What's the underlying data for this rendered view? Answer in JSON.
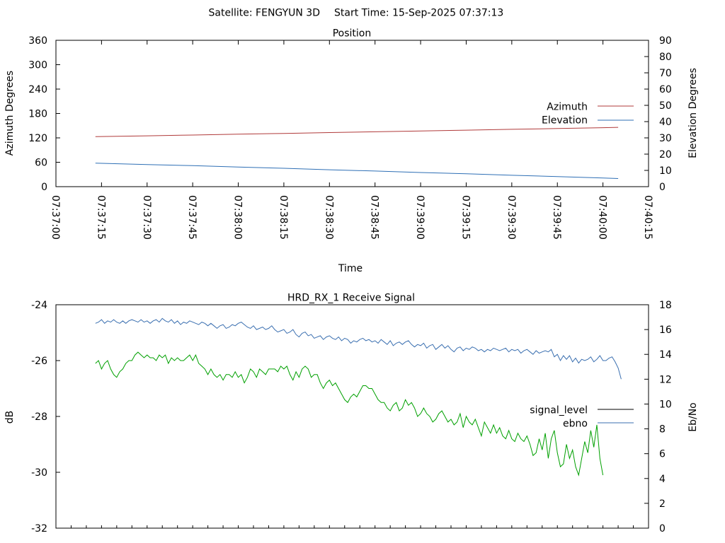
{
  "page": {
    "header_satellite": "Satellite: FENGYUN 3D",
    "header_start": "Start Time: 15-Sep-2025 07:37:13"
  },
  "colors": {
    "azimuth": "#b03a3a",
    "elevation": "#2e6fb5",
    "signal_level": "#000000",
    "ebno_line": "#3a6fb0",
    "signal_trace": "#00a000",
    "axis": "#000000"
  },
  "chart_data": [
    {
      "type": "line",
      "title": "Position",
      "xlabel": "Time",
      "ylabel": "Azimuth Degrees",
      "y2label": "Elevation Degrees",
      "x_ticks": [
        "07:37:00",
        "07:37:15",
        "07:37:30",
        "07:37:45",
        "07:38:00",
        "07:38:15",
        "07:38:30",
        "07:38:45",
        "07:39:00",
        "07:39:15",
        "07:39:30",
        "07:39:45",
        "07:40:00",
        "07:40:15"
      ],
      "xlim": [
        "07:37:00",
        "07:40:15"
      ],
      "ylim": [
        0,
        360
      ],
      "y_ticks": [
        0,
        60,
        120,
        180,
        240,
        300,
        360
      ],
      "y2lim": [
        0,
        90
      ],
      "y2_ticks": [
        0,
        10,
        20,
        30,
        40,
        50,
        60,
        70,
        80,
        90
      ],
      "legend_position": "right",
      "series": [
        {
          "name": "Azimuth",
          "axis": "y",
          "x": [
            "07:37:13",
            "07:37:30",
            "07:37:45",
            "07:38:00",
            "07:38:15",
            "07:38:30",
            "07:38:45",
            "07:39:00",
            "07:39:15",
            "07:39:30",
            "07:39:45",
            "07:40:00",
            "07:40:05"
          ],
          "values": [
            123,
            125,
            127,
            129,
            131,
            133,
            135,
            137,
            139,
            141,
            143,
            145,
            146
          ]
        },
        {
          "name": "Elevation",
          "axis": "y2",
          "x": [
            "07:37:13",
            "07:37:30",
            "07:37:45",
            "07:38:00",
            "07:38:15",
            "07:38:30",
            "07:38:45",
            "07:39:00",
            "07:39:15",
            "07:39:30",
            "07:39:45",
            "07:40:00",
            "07:40:05"
          ],
          "values": [
            14.5,
            13.6,
            12.9,
            12.1,
            11.3,
            10.4,
            9.6,
            8.7,
            7.9,
            7.0,
            6.2,
            5.3,
            5.0
          ]
        }
      ]
    },
    {
      "type": "line",
      "title": "HRD_RX_1 Receive Signal",
      "xlabel": "",
      "ylabel": "dB",
      "y2label": "Eb/No",
      "xlim": [
        "07:37:00",
        "07:40:15"
      ],
      "x_minor_ticks_seconds": 5,
      "ylim": [
        -32,
        -24
      ],
      "y_ticks": [
        -32,
        -30,
        -28,
        -26,
        -24
      ],
      "y2lim": [
        0,
        18
      ],
      "y2_ticks": [
        0,
        2,
        4,
        6,
        8,
        10,
        12,
        14,
        16,
        18
      ],
      "legend_position": "right",
      "legend": [
        {
          "name": "signal_level",
          "color_key": "signal_level"
        },
        {
          "name": "ebno",
          "color_key": "ebno_line"
        }
      ],
      "x_start": "07:37:13",
      "x_step_seconds": 1,
      "series": [
        {
          "axis": "y",
          "color_key": "signal_trace",
          "values": [
            -26.1,
            -26.0,
            -26.3,
            -26.1,
            -26.0,
            -26.3,
            -26.5,
            -26.6,
            -26.4,
            -26.3,
            -26.1,
            -26.0,
            -26.0,
            -25.8,
            -25.7,
            -25.8,
            -25.9,
            -25.8,
            -25.9,
            -25.9,
            -26.0,
            -25.8,
            -25.9,
            -25.8,
            -26.1,
            -25.9,
            -26.0,
            -25.9,
            -26.0,
            -26.0,
            -25.9,
            -25.8,
            -26.0,
            -25.8,
            -26.1,
            -26.2,
            -26.3,
            -26.5,
            -26.3,
            -26.5,
            -26.6,
            -26.5,
            -26.7,
            -26.5,
            -26.5,
            -26.6,
            -26.4,
            -26.6,
            -26.5,
            -26.8,
            -26.6,
            -26.3,
            -26.4,
            -26.6,
            -26.3,
            -26.4,
            -26.5,
            -26.3,
            -26.3,
            -26.3,
            -26.4,
            -26.2,
            -26.3,
            -26.2,
            -26.5,
            -26.7,
            -26.4,
            -26.6,
            -26.3,
            -26.2,
            -26.3,
            -26.6,
            -26.5,
            -26.5,
            -26.8,
            -27.0,
            -26.8,
            -26.7,
            -26.9,
            -26.8,
            -27.0,
            -27.2,
            -27.4,
            -27.5,
            -27.3,
            -27.2,
            -27.3,
            -27.1,
            -26.9,
            -26.9,
            -27.0,
            -27.0,
            -27.2,
            -27.4,
            -27.5,
            -27.5,
            -27.7,
            -27.8,
            -27.6,
            -27.5,
            -27.8,
            -27.7,
            -27.4,
            -27.6,
            -27.5,
            -27.7,
            -28.0,
            -27.9,
            -27.7,
            -27.9,
            -28.0,
            -28.2,
            -28.1,
            -27.9,
            -27.8,
            -28.0,
            -28.2,
            -28.1,
            -28.3,
            -28.2,
            -27.9,
            -28.4,
            -28.0,
            -28.2,
            -28.3,
            -28.1,
            -28.4,
            -28.7,
            -28.2,
            -28.4,
            -28.6,
            -28.3,
            -28.6,
            -28.4,
            -28.7,
            -28.8,
            -28.5,
            -28.8,
            -28.9,
            -28.6,
            -28.8,
            -28.9,
            -28.7,
            -29.0,
            -29.4,
            -29.3,
            -28.8,
            -29.2,
            -28.6,
            -29.5,
            -28.8,
            -28.5,
            -29.3,
            -29.8,
            -29.7,
            -29.0,
            -29.5,
            -29.2,
            -29.8,
            -30.1,
            -29.5,
            -28.9,
            -29.3,
            -28.5,
            -29.1,
            -28.3,
            -29.5,
            -30.1
          ]
        },
        {
          "axis": "y2",
          "color_key": "ebno_line",
          "values": [
            16.5,
            16.6,
            16.8,
            16.5,
            16.7,
            16.6,
            16.8,
            16.6,
            16.5,
            16.7,
            16.5,
            16.7,
            16.8,
            16.7,
            16.6,
            16.8,
            16.6,
            16.7,
            16.5,
            16.7,
            16.8,
            16.6,
            16.9,
            16.7,
            16.6,
            16.8,
            16.5,
            16.7,
            16.4,
            16.6,
            16.5,
            16.7,
            16.6,
            16.5,
            16.4,
            16.6,
            16.5,
            16.3,
            16.5,
            16.3,
            16.1,
            16.3,
            16.4,
            16.1,
            16.2,
            16.4,
            16.3,
            16.5,
            16.6,
            16.4,
            16.2,
            16.1,
            16.3,
            16.0,
            16.1,
            16.2,
            16.0,
            16.1,
            16.3,
            16.0,
            15.8,
            15.9,
            16.0,
            15.7,
            15.8,
            16.0,
            15.6,
            15.4,
            15.7,
            15.8,
            15.5,
            15.6,
            15.3,
            15.4,
            15.5,
            15.2,
            15.4,
            15.5,
            15.3,
            15.2,
            15.4,
            15.1,
            15.3,
            15.2,
            14.9,
            15.1,
            15.0,
            15.2,
            15.3,
            15.1,
            15.2,
            15.0,
            15.1,
            14.9,
            15.2,
            15.0,
            14.8,
            15.1,
            14.7,
            14.9,
            15.0,
            14.8,
            15.0,
            15.1,
            14.8,
            14.6,
            14.8,
            14.7,
            14.9,
            14.5,
            14.7,
            14.8,
            14.4,
            14.6,
            14.8,
            14.5,
            14.7,
            14.4,
            14.2,
            14.5,
            14.6,
            14.3,
            14.5,
            14.4,
            14.6,
            14.5,
            14.3,
            14.4,
            14.2,
            14.4,
            14.3,
            14.5,
            14.4,
            14.3,
            14.4,
            14.5,
            14.2,
            14.4,
            14.3,
            14.4,
            14.1,
            14.3,
            14.4,
            14.2,
            14.0,
            14.3,
            14.1,
            14.2,
            14.3,
            14.2,
            14.4,
            13.8,
            14.0,
            13.5,
            13.9,
            13.6,
            13.9,
            13.4,
            13.7,
            13.3,
            13.6,
            13.5,
            13.6,
            13.8,
            13.4,
            13.6,
            13.9,
            13.5,
            13.5,
            13.7,
            13.8,
            13.4,
            12.9,
            12.0
          ]
        }
      ]
    }
  ]
}
